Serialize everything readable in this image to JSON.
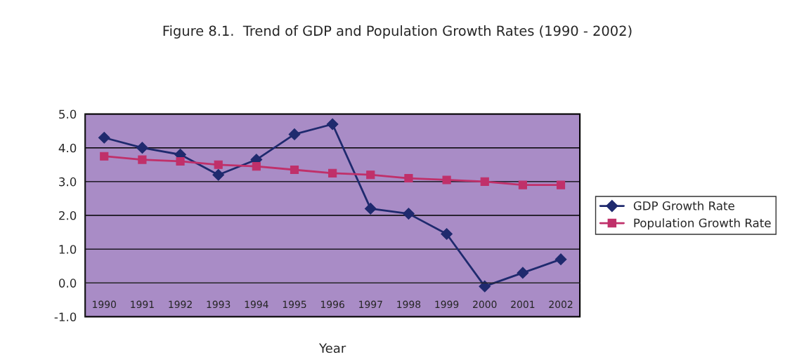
{
  "chart_data": {
    "type": "line",
    "title": "Figure 8.1.  Trend of GDP and Population Growth Rates (1990 - 2002)",
    "xlabel": "Year",
    "categories": [
      "1990",
      "1991",
      "1992",
      "1993",
      "1994",
      "1995",
      "1996",
      "1997",
      "1998",
      "1999",
      "2000",
      "2001",
      "2002"
    ],
    "series": [
      {
        "name": "GDP Growth Rate",
        "color": "#1f2a6e",
        "marker": "diamond",
        "values": [
          4.3,
          4.0,
          3.8,
          3.2,
          3.65,
          4.4,
          4.7,
          2.2,
          2.05,
          1.45,
          -0.1,
          0.3,
          0.7
        ]
      },
      {
        "name": "Population Growth Rate",
        "color": "#c0306a",
        "marker": "square",
        "values": [
          3.75,
          3.65,
          3.6,
          3.5,
          3.45,
          3.35,
          3.25,
          3.2,
          3.1,
          3.05,
          3.0,
          2.9,
          2.9
        ]
      }
    ],
    "ylim": [
      -1,
      5
    ],
    "yticks": [
      {
        "value": -1,
        "label": "-1.0"
      },
      {
        "value": 0,
        "label": "0.0"
      },
      {
        "value": 1,
        "label": "1.0"
      },
      {
        "value": 2,
        "label": "2.0"
      },
      {
        "value": 3,
        "label": "3.0"
      },
      {
        "value": 4,
        "label": "4.0"
      },
      {
        "value": 5,
        "label": "5.0"
      }
    ],
    "grid": "y",
    "legend": "right",
    "line_style": "solid"
  }
}
